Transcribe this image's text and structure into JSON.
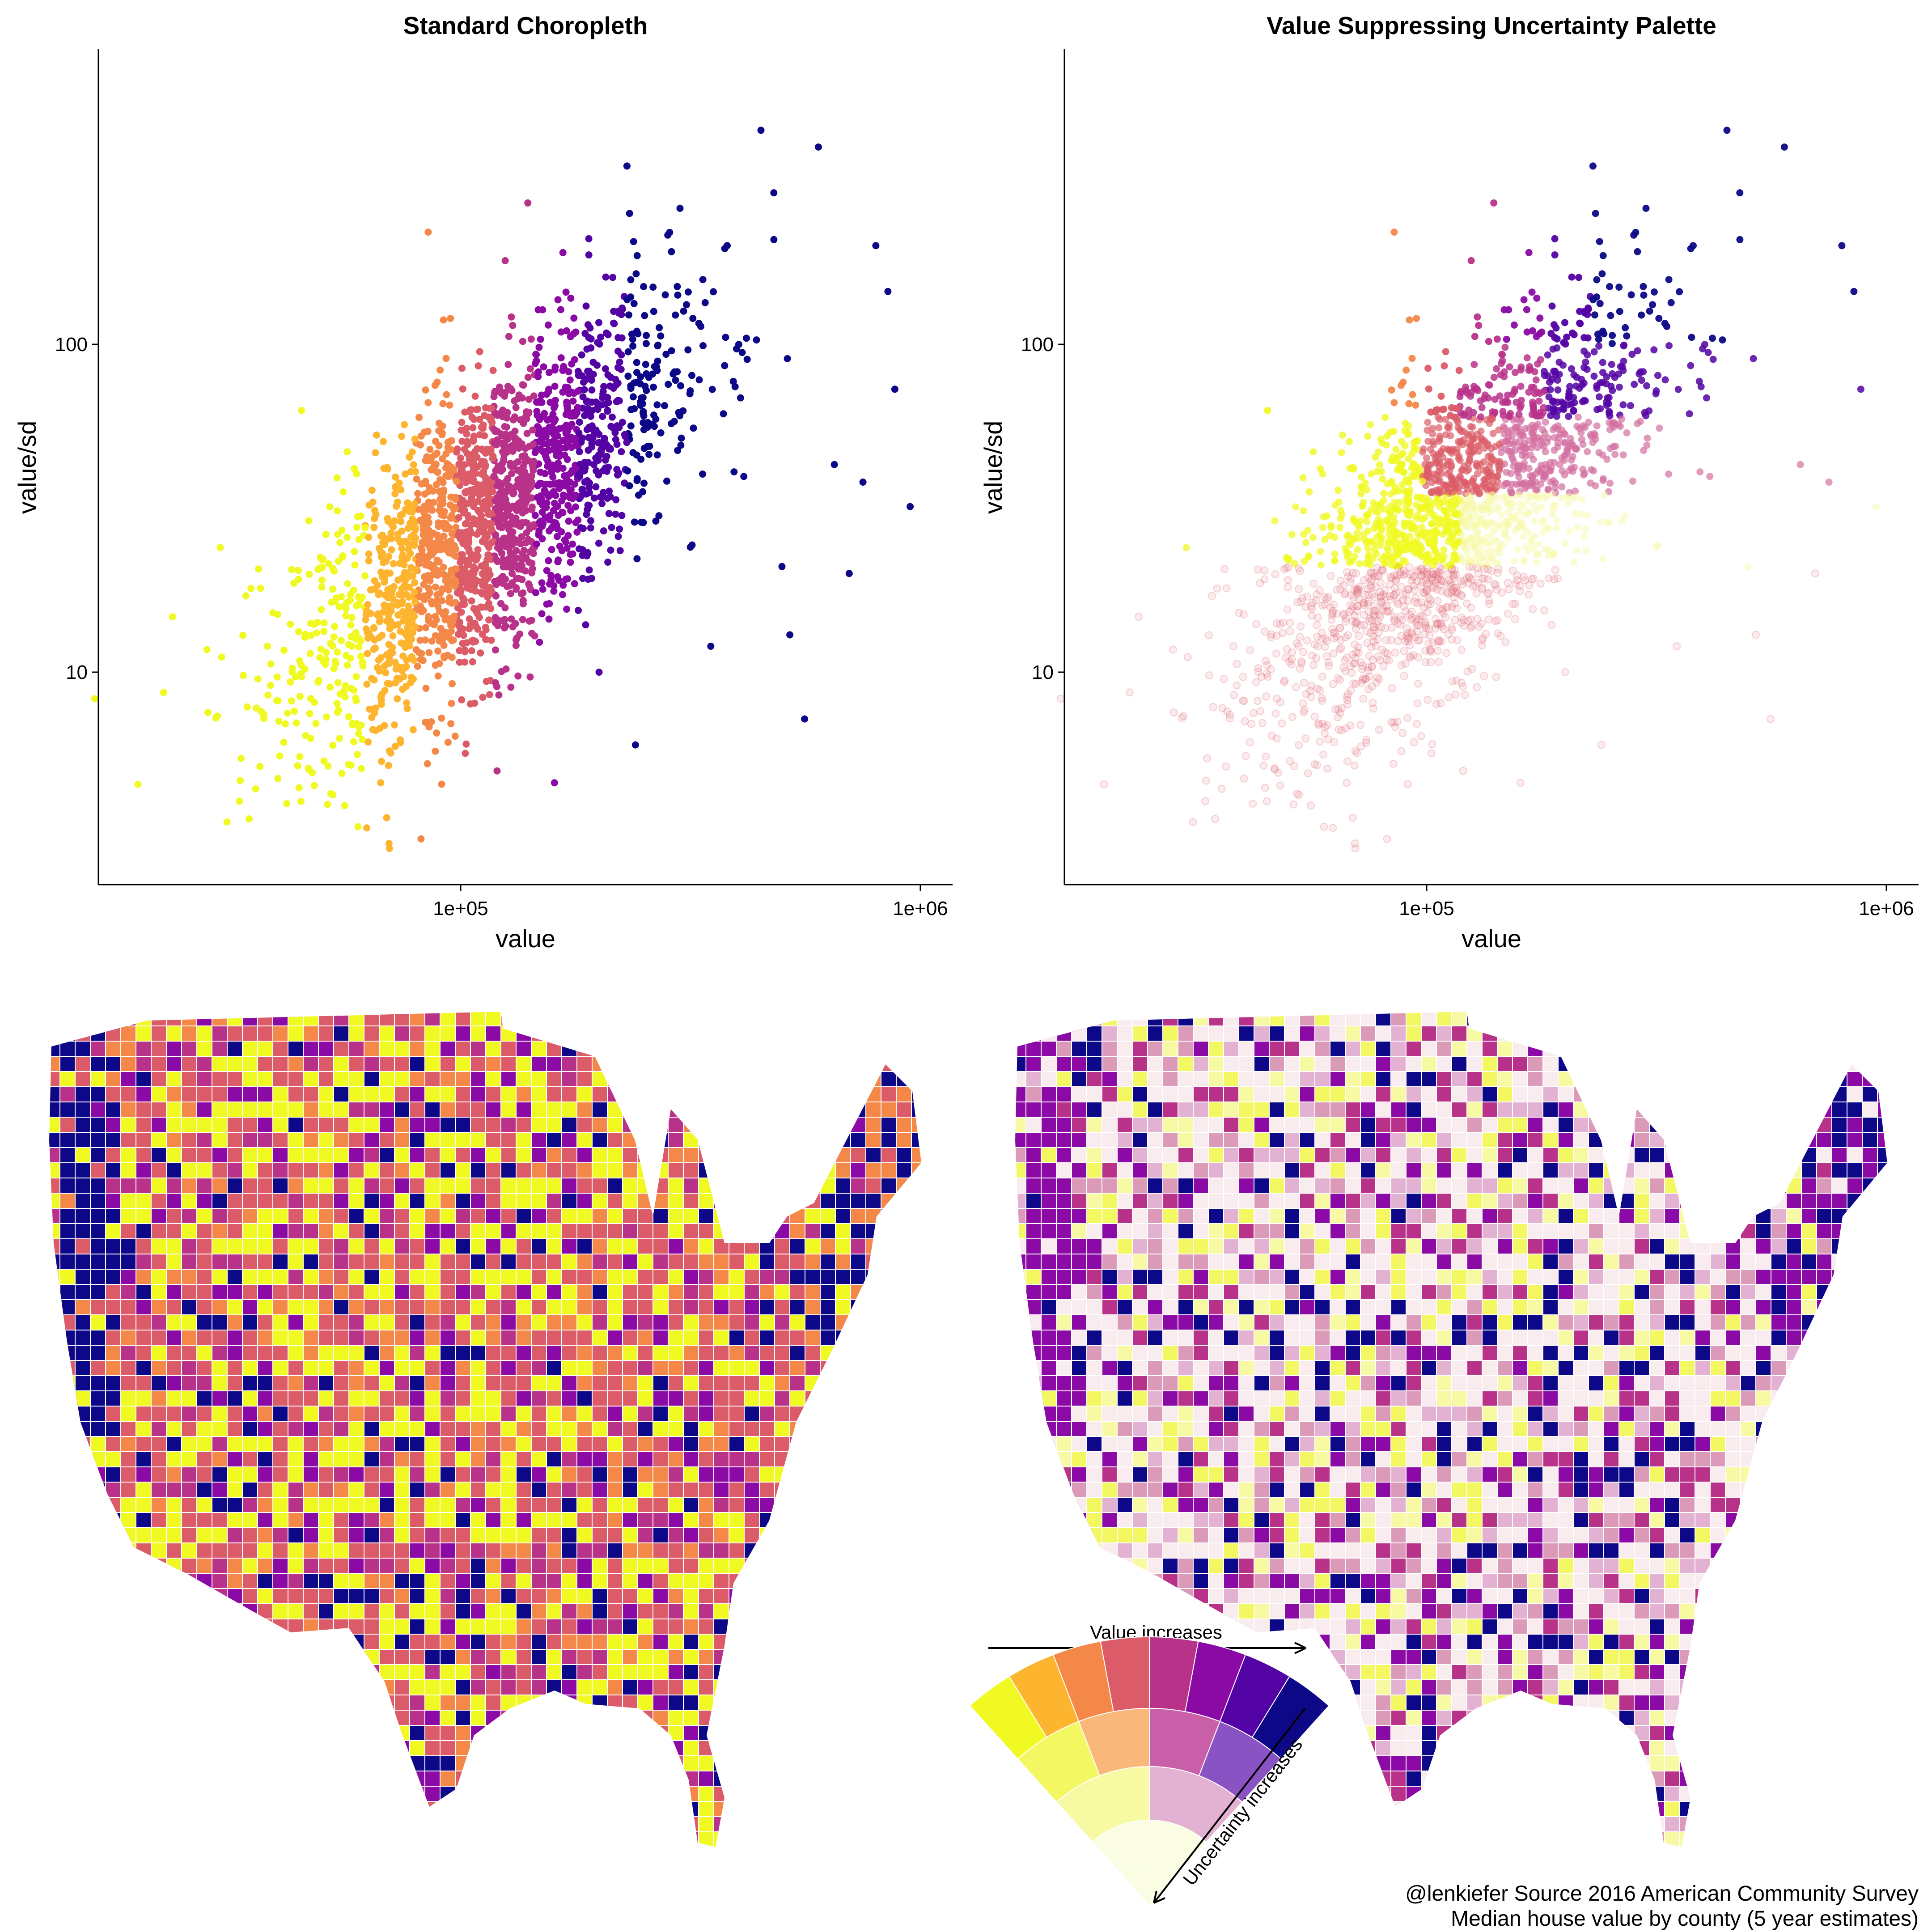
{
  "chart_data": [
    {
      "type": "scatter",
      "title": "Standard Choropleth",
      "xlabel": "value",
      "ylabel": "value/sd",
      "x_scale": "log10",
      "y_scale": "log10",
      "xlim": [
        15000,
        1100000
      ],
      "ylim": [
        2.5,
        700
      ],
      "x_ticks": [
        {
          "value": 100000,
          "label": "1e+05"
        },
        {
          "value": 1000000,
          "label": "1e+06"
        }
      ],
      "y_ticks": [
        {
          "value": 10,
          "label": "10"
        },
        {
          "value": 100,
          "label": "100"
        }
      ],
      "palette": "plasma (value bins)",
      "points": [
        {
          "x": 16000,
          "y": 8.3
        },
        {
          "x": 30000,
          "y": 24
        },
        {
          "x": 35000,
          "y": 18
        },
        {
          "x": 38000,
          "y": 12
        },
        {
          "x": 40000,
          "y": 15
        },
        {
          "x": 42000,
          "y": 7.5
        },
        {
          "x": 45000,
          "y": 10.5
        },
        {
          "x": 48000,
          "y": 14
        },
        {
          "x": 50000,
          "y": 22
        },
        {
          "x": 52000,
          "y": 9
        },
        {
          "x": 55000,
          "y": 17
        },
        {
          "x": 58000,
          "y": 12
        },
        {
          "x": 60000,
          "y": 6.5
        },
        {
          "x": 62000,
          "y": 28
        },
        {
          "x": 65000,
          "y": 19
        },
        {
          "x": 67000,
          "y": 4.6
        },
        {
          "x": 70000,
          "y": 2.9
        },
        {
          "x": 72000,
          "y": 35
        },
        {
          "x": 75000,
          "y": 25
        },
        {
          "x": 78000,
          "y": 14
        },
        {
          "x": 80000,
          "y": 50
        },
        {
          "x": 82000,
          "y": 3.1
        },
        {
          "x": 85000,
          "y": 220
        },
        {
          "x": 88000,
          "y": 75
        },
        {
          "x": 92000,
          "y": 30
        },
        {
          "x": 95000,
          "y": 120
        },
        {
          "x": 100000,
          "y": 45
        },
        {
          "x": 105000,
          "y": 8
        },
        {
          "x": 110000,
          "y": 95
        },
        {
          "x": 115000,
          "y": 60
        },
        {
          "x": 120000,
          "y": 5
        },
        {
          "x": 125000,
          "y": 180
        },
        {
          "x": 130000,
          "y": 35
        },
        {
          "x": 140000,
          "y": 270
        },
        {
          "x": 150000,
          "y": 70
        },
        {
          "x": 160000,
          "y": 4.6
        },
        {
          "x": 170000,
          "y": 110
        },
        {
          "x": 180000,
          "y": 40
        },
        {
          "x": 190000,
          "y": 210
        },
        {
          "x": 200000,
          "y": 10
        },
        {
          "x": 220000,
          "y": 85
        },
        {
          "x": 230000,
          "y": 350
        },
        {
          "x": 240000,
          "y": 6
        },
        {
          "x": 250000,
          "y": 150
        },
        {
          "x": 270000,
          "y": 30
        },
        {
          "x": 300000,
          "y": 260
        },
        {
          "x": 320000,
          "y": 120
        },
        {
          "x": 350000,
          "y": 12
        },
        {
          "x": 380000,
          "y": 200
        },
        {
          "x": 420000,
          "y": 90
        },
        {
          "x": 450000,
          "y": 450
        },
        {
          "x": 480000,
          "y": 290
        },
        {
          "x": 500000,
          "y": 21
        },
        {
          "x": 520000,
          "y": 13
        },
        {
          "x": 560000,
          "y": 7.2
        },
        {
          "x": 600000,
          "y": 400
        },
        {
          "x": 650000,
          "y": 43
        },
        {
          "x": 700000,
          "y": 20
        },
        {
          "x": 750000,
          "y": 38
        },
        {
          "x": 800000,
          "y": 200
        },
        {
          "x": 850000,
          "y": 145
        },
        {
          "x": 880000,
          "y": 73
        },
        {
          "x": 950000,
          "y": 32
        }
      ]
    },
    {
      "type": "scatter",
      "title": "Value Suppressing Uncertainty Palette",
      "xlabel": "value",
      "ylabel": "value/sd",
      "x_scale": "log10",
      "y_scale": "log10",
      "xlim": [
        15000,
        1100000
      ],
      "ylim": [
        2.5,
        700
      ],
      "x_ticks": [
        {
          "value": 100000,
          "label": "1e+05"
        },
        {
          "value": 1000000,
          "label": "1e+06"
        }
      ],
      "y_ticks": [
        {
          "value": 10,
          "label": "10"
        },
        {
          "value": 100,
          "label": "100"
        }
      ],
      "palette": "value-suppressing uncertainty palette (same points as left panel)"
    }
  ],
  "maps": [
    {
      "name": "Standard Choropleth map",
      "subject": "Median house value by county"
    },
    {
      "name": "Value Suppressing Uncertainty Palette map",
      "subject": "Median house value by county"
    }
  ],
  "legend": {
    "value_label": "Value increases",
    "uncertainty_label": "Uncertainty increases",
    "rings": [
      [
        "#f0f921",
        "#fdb42f",
        "#f48849",
        "#db5c68",
        "#b93289",
        "#8b0aa5",
        "#5302a3",
        "#0d0887"
      ],
      [
        "#f3f862",
        "#f9b87a",
        "#ca5fa9",
        "#8953c4"
      ],
      [
        "#f7f9a3",
        "#e3b2d3"
      ],
      [
        "#fbfce4"
      ]
    ]
  },
  "colors": {
    "plasma": [
      "#f0f921",
      "#fdb42f",
      "#f48849",
      "#db5c68",
      "#b93289",
      "#8b0aa5",
      "#5302a3",
      "#0d0887"
    ],
    "missing": "#808080"
  },
  "caption": {
    "line1": "@lenkiefer Source 2016 American Community Survey",
    "line2": "Median house value by county (5 year estimates)"
  }
}
